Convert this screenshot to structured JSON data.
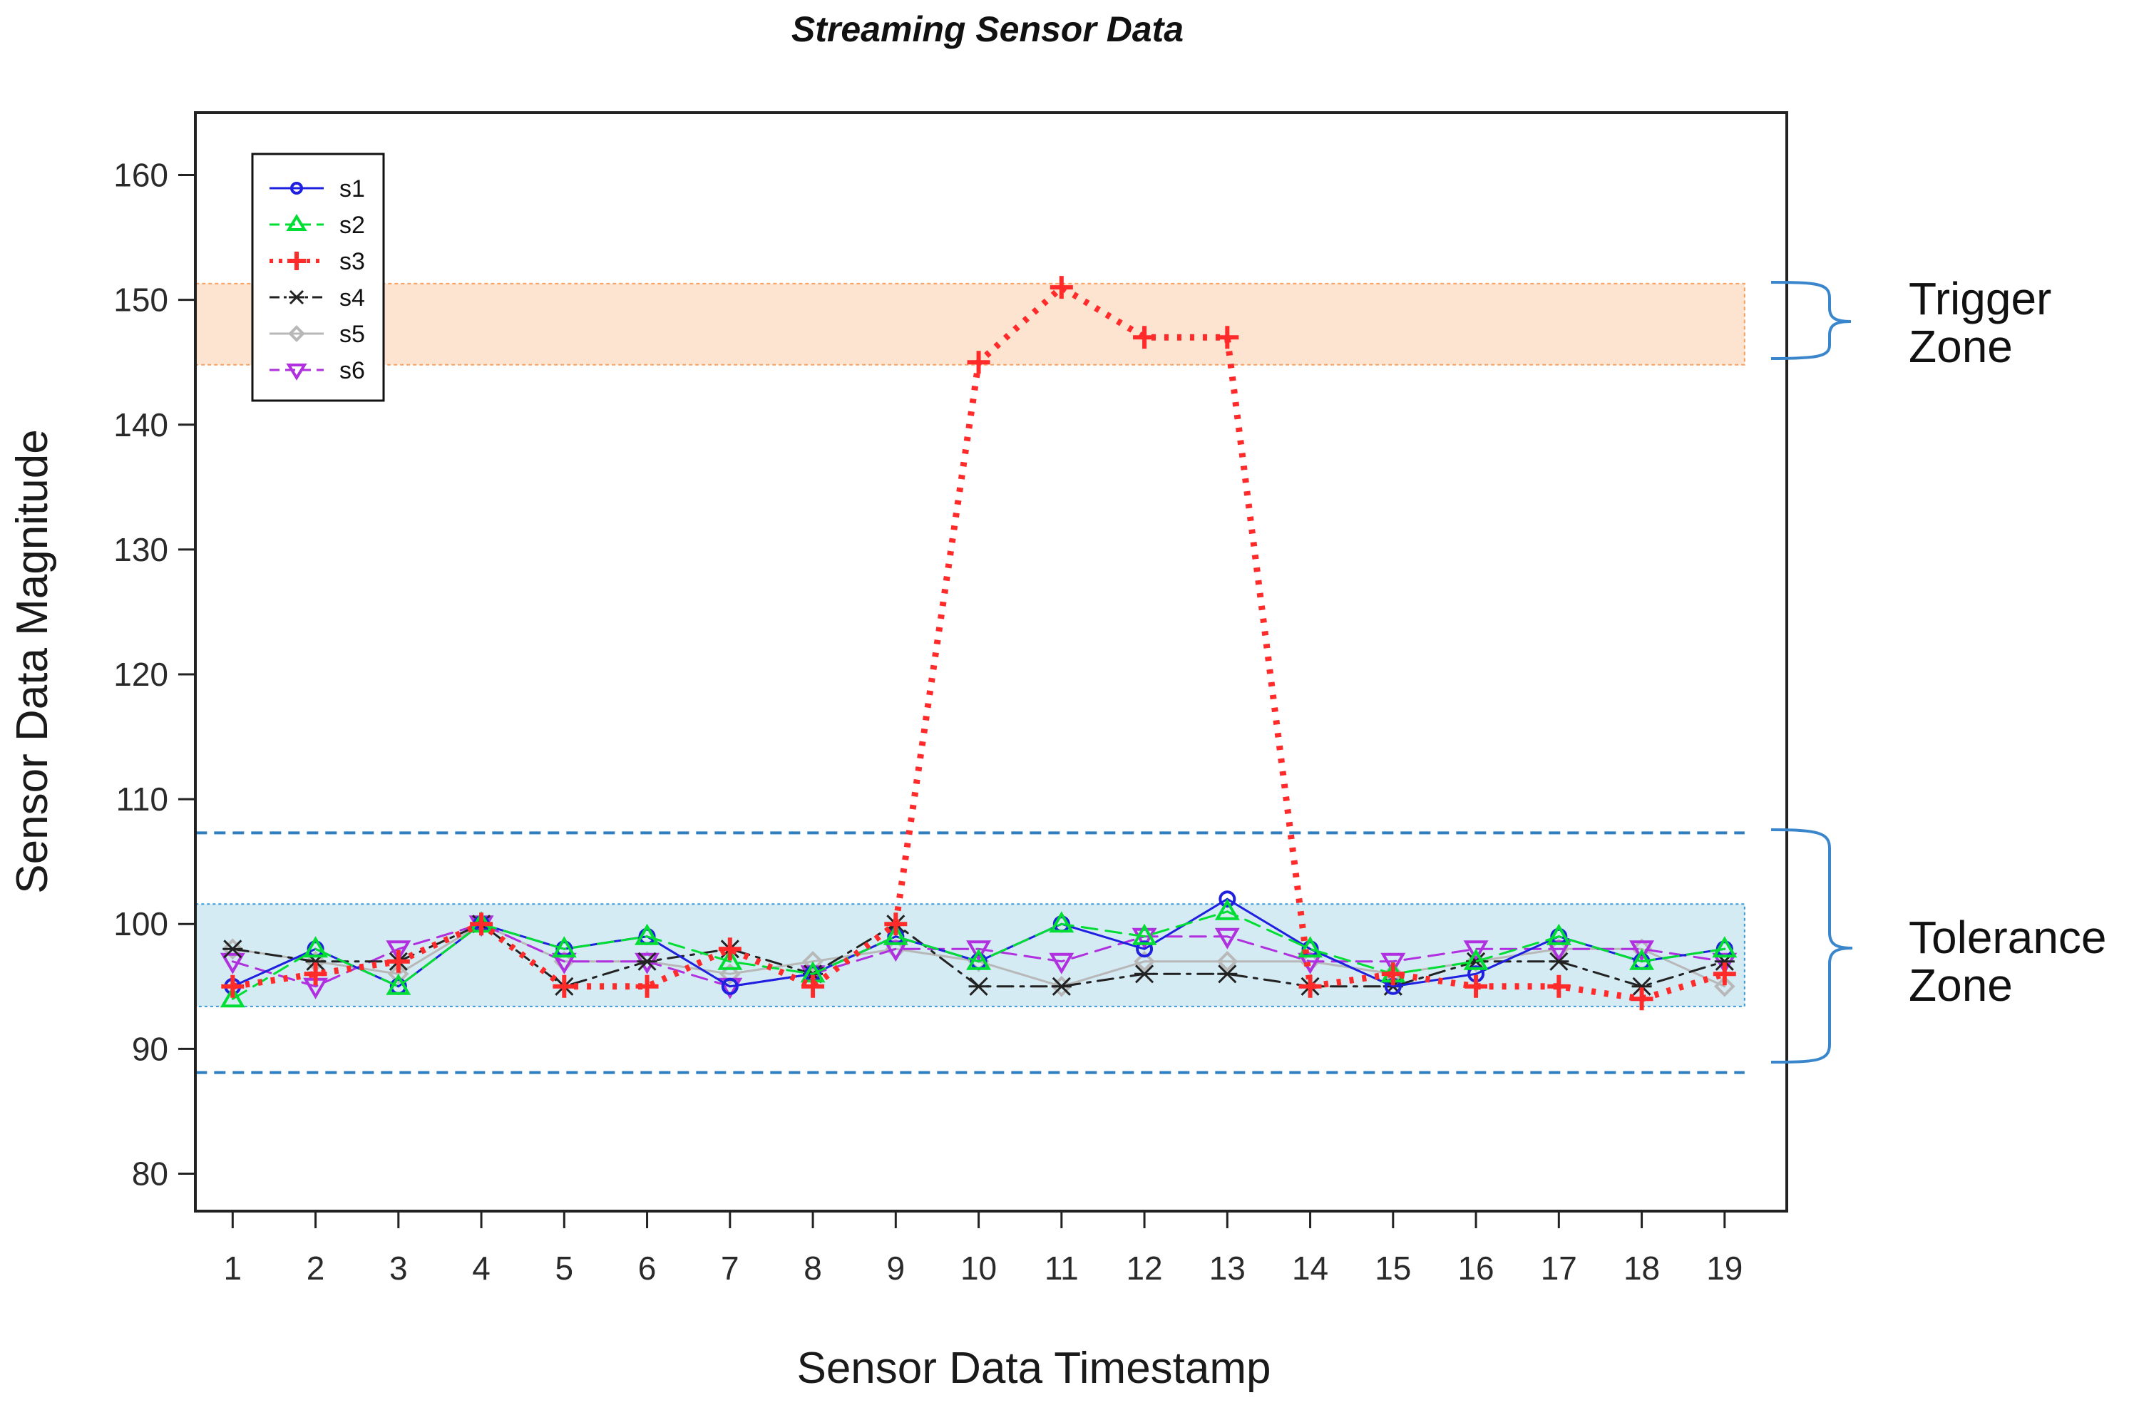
{
  "chart_data": {
    "type": "line",
    "title": "Streaming Sensor Data",
    "xlabel": "Sensor Data Timestamp",
    "ylabel": "Sensor Data Magnitude",
    "x": [
      1,
      2,
      3,
      4,
      5,
      6,
      7,
      8,
      9,
      10,
      11,
      12,
      13,
      14,
      15,
      16,
      17,
      18,
      19
    ],
    "xticks": [
      "1",
      "2",
      "3",
      "4",
      "5",
      "6",
      "7",
      "8",
      "9",
      "10",
      "11",
      "12",
      "13",
      "14",
      "15",
      "16",
      "17",
      "18",
      "19"
    ],
    "xlim": [
      0.55,
      19.75
    ],
    "ylim": [
      77,
      165
    ],
    "yticks": [
      80,
      90,
      100,
      110,
      120,
      130,
      140,
      150,
      160
    ],
    "legend_position": "top-left",
    "series": [
      {
        "name": "s1",
        "color": "#1f1fe0",
        "dash": "solid",
        "marker": "circle",
        "values": [
          95,
          98,
          95,
          100,
          98,
          99,
          95,
          96,
          99,
          97,
          100,
          98,
          102,
          98,
          95,
          96,
          99,
          97,
          98
        ]
      },
      {
        "name": "s2",
        "color": "#00dd33",
        "dash": "dashed",
        "marker": "triangle-up",
        "values": [
          94,
          98,
          95,
          100,
          98,
          99,
          97,
          96,
          99,
          97,
          100,
          99,
          101,
          98,
          96,
          97,
          99,
          97,
          98
        ]
      },
      {
        "name": "s3",
        "color": "#ff2a2a",
        "dash": "dotted",
        "marker": "plus",
        "values": [
          95,
          96,
          97,
          100,
          95,
          95,
          98,
          95,
          100,
          145,
          151,
          147,
          147,
          95,
          96,
          95,
          95,
          94,
          96
        ]
      },
      {
        "name": "s4",
        "color": "#222222",
        "dash": "dashdot",
        "marker": "star",
        "values": [
          98,
          97,
          97,
          100,
          95,
          97,
          98,
          96,
          100,
          95,
          95,
          96,
          96,
          95,
          95,
          97,
          97,
          95,
          97
        ]
      },
      {
        "name": "s5",
        "color": "#b8b8b8",
        "dash": "solid",
        "marker": "diamond",
        "values": [
          98,
          97,
          96,
          100,
          97,
          97,
          96,
          97,
          98,
          97,
          95,
          97,
          97,
          97,
          96,
          97,
          98,
          98,
          95
        ]
      },
      {
        "name": "s6",
        "color": "#b030e0",
        "dash": "dashed",
        "marker": "triangle-down",
        "values": [
          97,
          95,
          98,
          100,
          97,
          97,
          95,
          96,
          98,
          98,
          97,
          99,
          99,
          97,
          97,
          98,
          98,
          98,
          97
        ]
      }
    ],
    "zones": {
      "trigger": {
        "label_line1": "Trigger",
        "label_line2": "Zone",
        "range": [
          144.8,
          151.3
        ],
        "fill": "#fde4d0",
        "border": "#f5a060"
      },
      "tolerance": {
        "label_line1": "Tolerance",
        "label_line2": "Zone",
        "range": [
          93.4,
          101.6
        ],
        "fill": "#d4ebf3",
        "border": "#3a9ad6"
      },
      "tolerance_bounds": [
        88.1,
        107.3
      ],
      "bound_color": "#2f7fc0",
      "brace_color": "#3a86cc"
    }
  }
}
